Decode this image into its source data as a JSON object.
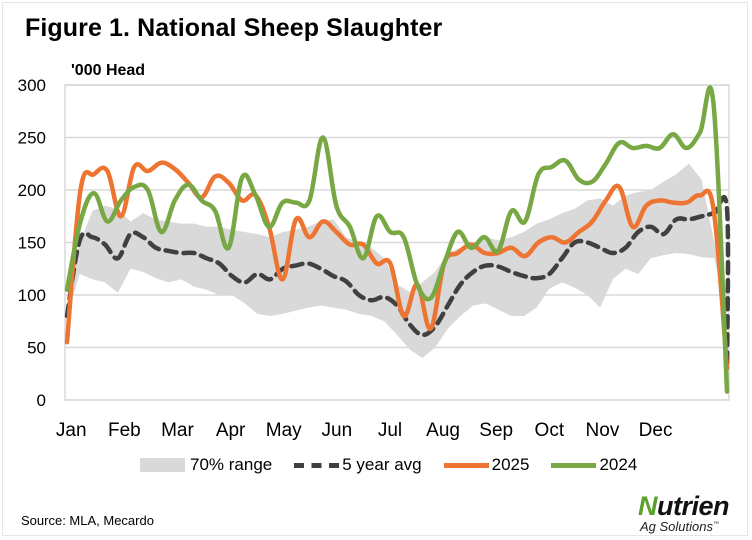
{
  "figure": {
    "title": "Figure 1. National Sheep Slaughter",
    "source": "Source: MLA, Mecardo",
    "logo": {
      "main_first": "N",
      "main_rest": "utrien",
      "sub": "Ag Solutions",
      "mark": "™"
    }
  },
  "colors": {
    "band": "#d9d9d9",
    "avg": "#404040",
    "y2025": "#ed7431",
    "y2024": "#77a844",
    "grid": "#d9d9d9"
  },
  "chart_data": {
    "type": "line",
    "title": "Figure 1. National Sheep Slaughter",
    "ylabel": "'000 Head",
    "xlabel": "",
    "ylim": [
      0,
      300
    ],
    "yticks": [
      0,
      50,
      100,
      150,
      200,
      250,
      300
    ],
    "xticks": [
      "Jan",
      "Feb",
      "Mar",
      "Apr",
      "May",
      "Jun",
      "Jul",
      "Aug",
      "Sep",
      "Oct",
      "Nov",
      "Dec"
    ],
    "x_unit": "week of year (1-53)",
    "grid": true,
    "legend_position": "bottom",
    "legend": [
      "70% range",
      "5 year avg",
      "2025",
      "2024"
    ],
    "series": [
      {
        "name": "70% range",
        "type": "band",
        "lower": [
          80,
          120,
          115,
          112,
          102,
          125,
          122,
          116,
          112,
          115,
          108,
          105,
          100,
          100,
          92,
          82,
          80,
          82,
          85,
          88,
          90,
          88,
          86,
          82,
          80,
          75,
          62,
          48,
          40,
          50,
          68,
          80,
          90,
          92,
          86,
          80,
          80,
          88,
          106,
          112,
          107,
          100,
          88,
          115,
          125,
          120,
          135,
          138,
          140,
          139,
          136,
          135,
          80
        ],
        "upper": [
          95,
          150,
          180,
          185,
          182,
          170,
          178,
          172,
          170,
          168,
          168,
          165,
          165,
          162,
          160,
          158,
          155,
          160,
          162,
          165,
          170,
          172,
          155,
          150,
          145,
          135,
          110,
          103,
          112,
          122,
          140,
          145,
          150,
          155,
          152,
          155,
          160,
          168,
          172,
          178,
          182,
          190,
          192,
          185,
          195,
          198,
          200,
          208,
          215,
          225,
          210,
          150,
          100
        ]
      },
      {
        "name": "5 year avg",
        "type": "dashed-line",
        "values": [
          80,
          152,
          155,
          148,
          135,
          158,
          155,
          145,
          142,
          140,
          140,
          135,
          130,
          118,
          112,
          120,
          115,
          125,
          128,
          130,
          125,
          118,
          113,
          100,
          95,
          98,
          90,
          72,
          62,
          70,
          90,
          110,
          122,
          128,
          127,
          122,
          118,
          116,
          120,
          135,
          150,
          150,
          145,
          140,
          145,
          160,
          165,
          158,
          172,
          172,
          175,
          178,
          182,
          30
        ]
      },
      {
        "name": "2025",
        "type": "line",
        "values": [
          55,
          200,
          215,
          218,
          175,
          222,
          218,
          226,
          220,
          207,
          193,
          213,
          207,
          190,
          195,
          165,
          115,
          172,
          155,
          170,
          160,
          148,
          148,
          130,
          130,
          80,
          110,
          68,
          130,
          140,
          148,
          140,
          140,
          145,
          137,
          150,
          155,
          150,
          160,
          170,
          190,
          203,
          165,
          185,
          190,
          188,
          188,
          195,
          182,
          30
        ]
      },
      {
        "name": "2024",
        "type": "line",
        "values": [
          105,
          170,
          197,
          170,
          190,
          203,
          200,
          160,
          190,
          205,
          190,
          180,
          145,
          212,
          195,
          165,
          188,
          188,
          190,
          250,
          185,
          165,
          135,
          175,
          160,
          155,
          110,
          97,
          130,
          160,
          145,
          155,
          142,
          180,
          170,
          215,
          222,
          228,
          210,
          208,
          225,
          245,
          240,
          242,
          240,
          253,
          240,
          255,
          282,
          8
        ]
      }
    ]
  }
}
